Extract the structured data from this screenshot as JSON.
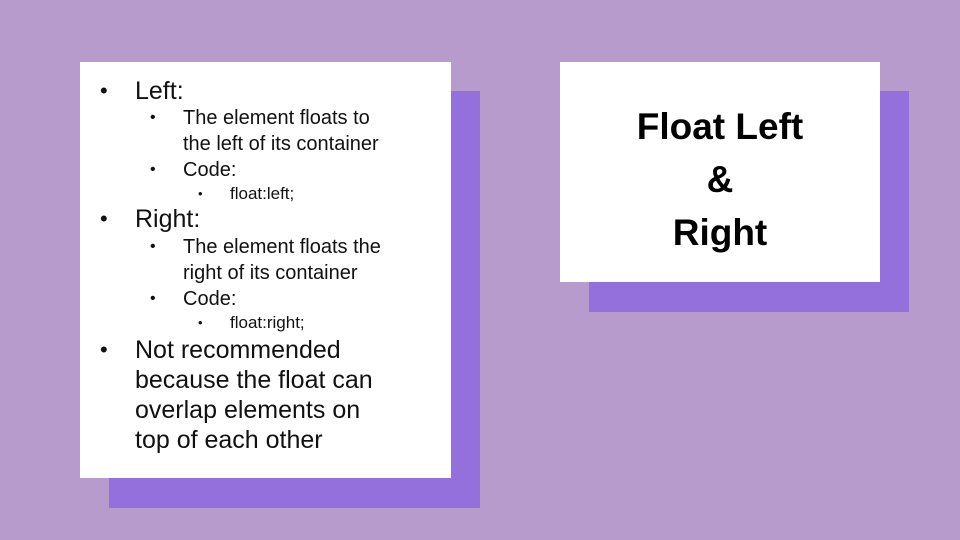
{
  "left_card": {
    "items": [
      {
        "bullet": "•",
        "text": "Left:"
      },
      {
        "bullet": "•",
        "text": "The element floats to"
      },
      {
        "text": "the left of its container"
      },
      {
        "bullet": "•",
        "text": "Code:"
      },
      {
        "bullet": "•",
        "text": "float:left;"
      },
      {
        "bullet": "•",
        "text": "Right:"
      },
      {
        "bullet": "•",
        "text": "The element floats the"
      },
      {
        "text": "right of its container"
      },
      {
        "bullet": "•",
        "text": "Code:"
      },
      {
        "bullet": "•",
        "text": "float:right;"
      },
      {
        "bullet": "•",
        "text": "Not recommended"
      },
      {
        "text": "because the float can"
      },
      {
        "text": "overlap elements on"
      },
      {
        "text": "top of each other"
      }
    ]
  },
  "right_card": {
    "title_lines": [
      "Float Left",
      "&",
      "Right"
    ]
  },
  "colors": {
    "background": "#b69bcc",
    "shadow": "#9370db",
    "card": "#ffffff"
  }
}
